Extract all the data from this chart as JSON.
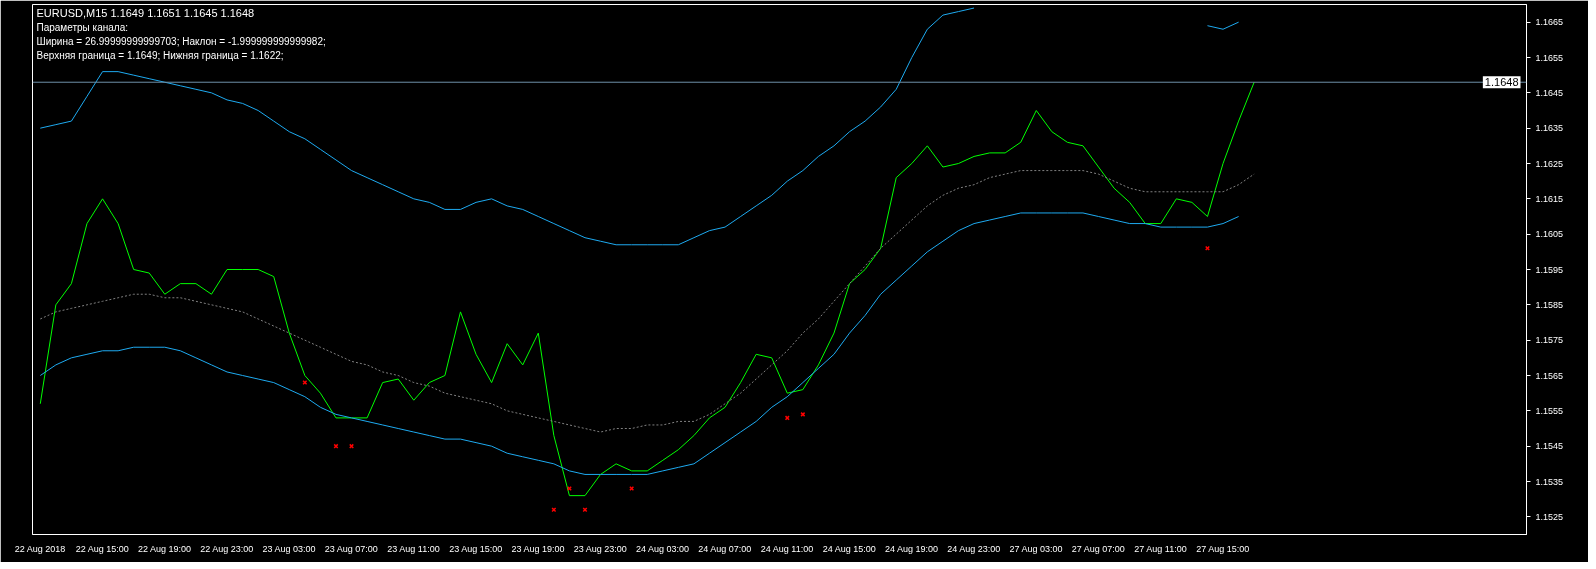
{
  "chart_data": {
    "type": "line",
    "title": "EURUSD,M15  1.1649 1.1651 1.1645 1.1648",
    "annotations": [
      "Параметры канала:",
      "Ширина = 26.99999999999703; Наклон = -1.999999999999982;",
      "Верхняя граница = 1.1649; Нижняя граница = 1.1622;"
    ],
    "categories": [
      "22 Aug 2018",
      null,
      null,
      null,
      "22 Aug 15:00",
      null,
      null,
      null,
      "22 Aug 19:00",
      null,
      null,
      null,
      "22 Aug 23:00",
      null,
      null,
      null,
      "23 Aug 03:00",
      null,
      null,
      null,
      "23 Aug 07:00",
      null,
      null,
      null,
      "23 Aug 11:00",
      null,
      null,
      null,
      "23 Aug 15:00",
      null,
      null,
      null,
      "23 Aug 19:00",
      null,
      null,
      null,
      "23 Aug 23:00",
      null,
      null,
      null,
      "24 Aug 03:00",
      null,
      null,
      null,
      "24 Aug 07:00",
      null,
      null,
      null,
      "24 Aug 11:00",
      null,
      null,
      null,
      "24 Aug 15:00",
      null,
      null,
      null,
      "24 Aug 19:00",
      null,
      null,
      null,
      "24 Aug 23:00",
      null,
      null,
      null,
      "27 Aug 03:00",
      null,
      null,
      null,
      "27 Aug 07:00",
      null,
      null,
      null,
      "27 Aug 11:00",
      null,
      null,
      null,
      "27 Aug 15:00",
      null,
      null,
      null,
      null,
      null,
      null,
      null,
      null,
      null,
      null,
      null,
      null,
      null,
      null,
      null,
      null,
      null,
      null,
      null
    ],
    "ylim": [
      1.152,
      1.167
    ],
    "yticks": [
      1.1525,
      1.1535,
      1.1545,
      1.1555,
      1.1565,
      1.1575,
      1.1585,
      1.1595,
      1.1605,
      1.1615,
      1.1625,
      1.1635,
      1.1645,
      1.1655,
      1.1665
    ],
    "ref_lines": [
      {
        "axis": "y",
        "value": 1.1648,
        "label": "1.1648",
        "color": "#6e8fa8"
      }
    ],
    "series": [
      {
        "color": "#00ff00",
        "values": [
          1.1557,
          1.1585,
          1.1591,
          1.1608,
          1.1615,
          1.1608,
          1.1595,
          1.1594,
          1.1588,
          1.1591,
          1.1591,
          1.1588,
          1.1595,
          1.1595,
          1.1595,
          1.1593,
          1.1577,
          1.1565,
          1.156,
          1.1553,
          1.1553,
          1.1553,
          1.1563,
          1.1564,
          1.1558,
          1.1563,
          1.1565,
          1.1583,
          1.1571,
          1.1563,
          1.1574,
          1.1568,
          1.1577,
          1.1548,
          1.1531,
          1.1531,
          1.1537,
          1.154,
          1.1538,
          1.1538,
          1.1541,
          1.1544,
          1.1548,
          1.1553,
          1.1556,
          1.1563,
          1.1571,
          1.157,
          1.156,
          1.1561,
          1.1568,
          1.1577,
          1.1591,
          1.1595,
          1.1601,
          1.1621,
          1.1625,
          1.163,
          1.1624,
          1.1625,
          1.1627,
          1.1628,
          1.1628,
          1.1631,
          1.164,
          1.1634,
          1.1631,
          1.163,
          1.1624,
          1.1618,
          1.1614,
          1.1608,
          1.1608,
          1.1615,
          1.1614,
          1.161,
          1.1625,
          1.1637,
          1.1648,
          null,
          null,
          null,
          null,
          null,
          null,
          null,
          null,
          null,
          null,
          null,
          null,
          null,
          null,
          null,
          null,
          null
        ]
      },
      {
        "color": "#1eaaf0",
        "values": [
          1.1635,
          1.1636,
          1.1637,
          1.1644,
          1.1651,
          1.1651,
          1.165,
          1.1649,
          1.1648,
          1.1647,
          1.1646,
          1.1645,
          1.1643,
          1.1642,
          1.164,
          1.1637,
          1.1634,
          1.1632,
          1.1629,
          1.1626,
          1.1623,
          1.1621,
          1.1619,
          1.1617,
          1.1615,
          1.1614,
          1.1612,
          1.1612,
          1.1614,
          1.1615,
          1.1613,
          1.1612,
          1.161,
          1.1608,
          1.1606,
          1.1604,
          1.1603,
          1.1602,
          1.1602,
          1.1602,
          1.1602,
          1.1602,
          1.1604,
          1.1606,
          1.1607,
          1.161,
          1.1613,
          1.1616,
          1.162,
          1.1623,
          1.1627,
          1.163,
          1.1634,
          1.1637,
          1.1641,
          1.1646,
          1.1655,
          1.1663,
          1.1667,
          1.1668,
          1.1669,
          null,
          null,
          null,
          null,
          null,
          null,
          null,
          null,
          null,
          null,
          null,
          null,
          null,
          null,
          1.1664,
          1.1663,
          1.1665,
          null,
          null,
          null,
          null,
          null,
          null,
          null,
          null,
          null,
          null,
          null,
          null,
          null,
          null,
          null,
          null,
          null,
          null
        ]
      },
      {
        "color": "#1eaaf0",
        "values": [
          1.1565,
          1.1568,
          1.157,
          1.1571,
          1.1572,
          1.1572,
          1.1573,
          1.1573,
          1.1573,
          1.1572,
          1.157,
          1.1568,
          1.1566,
          1.1565,
          1.1564,
          1.1563,
          1.1561,
          1.1559,
          1.1556,
          1.1554,
          1.1553,
          1.1552,
          1.1551,
          1.155,
          1.1549,
          1.1548,
          1.1547,
          1.1547,
          1.1546,
          1.1545,
          1.1543,
          1.1542,
          1.1541,
          1.154,
          1.1538,
          1.1537,
          1.1537,
          1.1537,
          1.1537,
          1.1537,
          1.1538,
          1.1539,
          1.154,
          1.1543,
          1.1546,
          1.1549,
          1.1552,
          1.1556,
          1.1559,
          1.1563,
          1.1567,
          1.1571,
          1.1577,
          1.1582,
          1.1588,
          1.1592,
          1.1596,
          1.16,
          1.1603,
          1.1606,
          1.1608,
          1.1609,
          1.161,
          1.1611,
          1.1611,
          1.1611,
          1.1611,
          1.1611,
          1.161,
          1.1609,
          1.1608,
          1.1608,
          1.1607,
          1.1607,
          1.1607,
          1.1607,
          1.1608,
          1.161,
          null,
          null,
          null,
          null,
          null,
          null,
          null,
          null,
          null,
          null,
          null,
          null,
          null,
          null,
          null,
          null,
          null,
          null
        ]
      },
      {
        "color": "#808080",
        "line_style": "dashed",
        "values": [
          1.1581,
          1.1583,
          1.1584,
          1.1585,
          1.1586,
          1.1587,
          1.1588,
          1.1588,
          1.1587,
          1.1587,
          1.1586,
          1.1585,
          1.1584,
          1.1583,
          1.1581,
          1.1579,
          1.1577,
          1.1575,
          1.1573,
          1.1571,
          1.1569,
          1.1568,
          1.1566,
          1.1565,
          1.1563,
          1.1562,
          1.156,
          1.1559,
          1.1558,
          1.1557,
          1.1555,
          1.1554,
          1.1553,
          1.1552,
          1.1551,
          1.155,
          1.1549,
          1.155,
          1.155,
          1.1551,
          1.1551,
          1.1552,
          1.1552,
          1.1554,
          1.1557,
          1.156,
          1.1564,
          1.1568,
          1.1572,
          1.1577,
          1.1581,
          1.1586,
          1.1591,
          1.1596,
          1.1601,
          1.1605,
          1.1609,
          1.1613,
          1.1616,
          1.1618,
          1.1619,
          1.1621,
          1.1622,
          1.1623,
          1.1623,
          1.1623,
          1.1623,
          1.1623,
          1.1622,
          1.162,
          1.1618,
          1.1617,
          1.1617,
          1.1617,
          1.1617,
          1.1617,
          1.1617,
          1.1619,
          1.1622,
          null,
          null,
          null,
          null,
          null,
          null,
          null,
          null,
          null,
          null,
          null,
          null,
          null,
          null,
          null,
          null,
          null
        ]
      },
      {
        "type": "scatter",
        "marker": "cross",
        "color": "#ff0000",
        "values": [
          null,
          null,
          null,
          null,
          null,
          null,
          null,
          null,
          null,
          null,
          null,
          null,
          null,
          null,
          null,
          null,
          null,
          1.1563,
          null,
          1.1545,
          1.1545,
          null,
          null,
          null,
          null,
          null,
          null,
          null,
          null,
          null,
          null,
          null,
          null,
          1.1527,
          1.1533,
          1.1527,
          null,
          null,
          1.1533,
          null,
          null,
          null,
          null,
          null,
          null,
          null,
          null,
          null,
          1.1553,
          1.1554,
          null,
          null,
          null,
          null,
          null,
          null,
          null,
          null,
          null,
          null,
          null,
          null,
          null,
          null,
          null,
          null,
          null,
          null,
          null,
          null,
          null,
          null,
          null,
          null,
          null,
          1.1601,
          null,
          null,
          null,
          null,
          null,
          null,
          null,
          null,
          null,
          null,
          null,
          null,
          null,
          null,
          null,
          null,
          null,
          null,
          null,
          null
        ]
      }
    ]
  }
}
